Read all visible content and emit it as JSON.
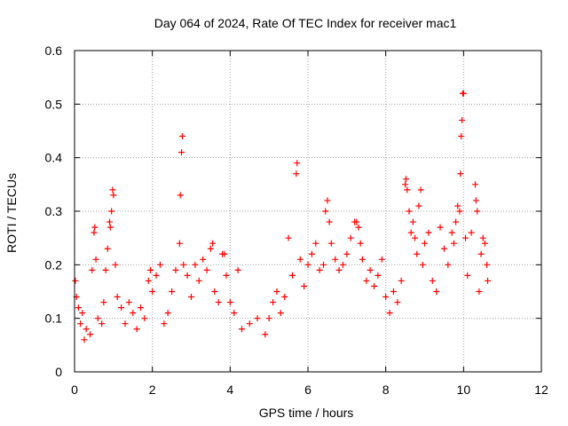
{
  "chart_data": {
    "type": "scatter",
    "title": "Day 064 of 2024, Rate Of TEC Index for receiver mac1",
    "xlabel": "GPS time / hours",
    "ylabel": "ROTI / TECUs",
    "xlim": [
      0,
      12
    ],
    "ylim": [
      0,
      0.6
    ],
    "x_ticks": [
      0,
      2,
      4,
      6,
      8,
      10,
      12
    ],
    "y_ticks": [
      0,
      0.1,
      0.2,
      0.3,
      0.4,
      0.5,
      0.6
    ],
    "x_tick_labels": [
      "0",
      "2",
      "4",
      "6",
      "8",
      "10",
      "12"
    ],
    "y_tick_labels": [
      "0",
      "0.1",
      "0.2",
      "0.3",
      "0.4",
      "0.5",
      "0.6"
    ],
    "grid": true,
    "marker": "plus",
    "marker_color": "#ff0000",
    "series": [
      {
        "name": "ROTI",
        "points": [
          [
            0.02,
            0.17
          ],
          [
            0.05,
            0.14
          ],
          [
            0.1,
            0.12
          ],
          [
            0.15,
            0.09
          ],
          [
            0.2,
            0.11
          ],
          [
            0.25,
            0.06
          ],
          [
            0.3,
            0.08
          ],
          [
            0.4,
            0.07
          ],
          [
            0.45,
            0.19
          ],
          [
            0.5,
            0.26
          ],
          [
            0.52,
            0.27
          ],
          [
            0.55,
            0.21
          ],
          [
            0.6,
            0.1
          ],
          [
            0.7,
            0.09
          ],
          [
            0.75,
            0.13
          ],
          [
            0.8,
            0.19
          ],
          [
            0.85,
            0.23
          ],
          [
            0.9,
            0.28
          ],
          [
            0.92,
            0.27
          ],
          [
            0.95,
            0.3
          ],
          [
            0.98,
            0.34
          ],
          [
            1.0,
            0.33
          ],
          [
            1.05,
            0.2
          ],
          [
            1.1,
            0.14
          ],
          [
            1.2,
            0.12
          ],
          [
            1.3,
            0.09
          ],
          [
            1.4,
            0.13
          ],
          [
            1.5,
            0.11
          ],
          [
            1.6,
            0.08
          ],
          [
            1.7,
            0.12
          ],
          [
            1.8,
            0.1
          ],
          [
            1.9,
            0.17
          ],
          [
            1.95,
            0.19
          ],
          [
            2.0,
            0.15
          ],
          [
            2.1,
            0.18
          ],
          [
            2.2,
            0.2
          ],
          [
            2.3,
            0.09
          ],
          [
            2.4,
            0.11
          ],
          [
            2.5,
            0.15
          ],
          [
            2.6,
            0.19
          ],
          [
            2.7,
            0.24
          ],
          [
            2.72,
            0.33
          ],
          [
            2.75,
            0.41
          ],
          [
            2.77,
            0.44
          ],
          [
            2.8,
            0.2
          ],
          [
            2.9,
            0.18
          ],
          [
            3.0,
            0.14
          ],
          [
            3.1,
            0.2
          ],
          [
            3.2,
            0.17
          ],
          [
            3.3,
            0.21
          ],
          [
            3.4,
            0.19
          ],
          [
            3.5,
            0.23
          ],
          [
            3.55,
            0.24
          ],
          [
            3.6,
            0.15
          ],
          [
            3.7,
            0.13
          ],
          [
            3.8,
            0.22
          ],
          [
            3.85,
            0.22
          ],
          [
            3.9,
            0.18
          ],
          [
            4.0,
            0.13
          ],
          [
            4.1,
            0.11
          ],
          [
            4.2,
            0.19
          ],
          [
            4.3,
            0.08
          ],
          [
            4.5,
            0.09
          ],
          [
            4.7,
            0.1
          ],
          [
            4.9,
            0.07
          ],
          [
            5.0,
            0.1
          ],
          [
            5.1,
            0.13
          ],
          [
            5.2,
            0.15
          ],
          [
            5.3,
            0.11
          ],
          [
            5.4,
            0.14
          ],
          [
            5.5,
            0.25
          ],
          [
            5.6,
            0.18
          ],
          [
            5.7,
            0.37
          ],
          [
            5.72,
            0.39
          ],
          [
            5.8,
            0.21
          ],
          [
            5.9,
            0.16
          ],
          [
            6.0,
            0.2
          ],
          [
            6.1,
            0.22
          ],
          [
            6.2,
            0.24
          ],
          [
            6.3,
            0.19
          ],
          [
            6.4,
            0.2
          ],
          [
            6.45,
            0.3
          ],
          [
            6.5,
            0.32
          ],
          [
            6.55,
            0.28
          ],
          [
            6.6,
            0.24
          ],
          [
            6.7,
            0.21
          ],
          [
            6.8,
            0.19
          ],
          [
            6.9,
            0.2
          ],
          [
            7.0,
            0.22
          ],
          [
            7.1,
            0.25
          ],
          [
            7.2,
            0.28
          ],
          [
            7.25,
            0.28
          ],
          [
            7.3,
            0.27
          ],
          [
            7.35,
            0.24
          ],
          [
            7.4,
            0.21
          ],
          [
            7.5,
            0.17
          ],
          [
            7.6,
            0.19
          ],
          [
            7.7,
            0.16
          ],
          [
            7.8,
            0.18
          ],
          [
            7.9,
            0.21
          ],
          [
            8.0,
            0.14
          ],
          [
            8.1,
            0.11
          ],
          [
            8.2,
            0.15
          ],
          [
            8.3,
            0.13
          ],
          [
            8.4,
            0.17
          ],
          [
            8.5,
            0.35
          ],
          [
            8.52,
            0.36
          ],
          [
            8.55,
            0.34
          ],
          [
            8.6,
            0.3
          ],
          [
            8.65,
            0.26
          ],
          [
            8.7,
            0.28
          ],
          [
            8.75,
            0.25
          ],
          [
            8.8,
            0.22
          ],
          [
            8.85,
            0.31
          ],
          [
            8.9,
            0.34
          ],
          [
            8.95,
            0.2
          ],
          [
            9.0,
            0.24
          ],
          [
            9.1,
            0.26
          ],
          [
            9.2,
            0.17
          ],
          [
            9.3,
            0.15
          ],
          [
            9.4,
            0.27
          ],
          [
            9.5,
            0.23
          ],
          [
            9.6,
            0.2
          ],
          [
            9.7,
            0.26
          ],
          [
            9.75,
            0.24
          ],
          [
            9.8,
            0.28
          ],
          [
            9.85,
            0.31
          ],
          [
            9.9,
            0.3
          ],
          [
            9.92,
            0.37
          ],
          [
            9.94,
            0.44
          ],
          [
            9.96,
            0.47
          ],
          [
            9.98,
            0.52
          ],
          [
            10.0,
            0.52
          ],
          [
            10.05,
            0.25
          ],
          [
            10.1,
            0.18
          ],
          [
            10.2,
            0.26
          ],
          [
            10.3,
            0.35
          ],
          [
            10.32,
            0.32
          ],
          [
            10.35,
            0.3
          ],
          [
            10.4,
            0.15
          ],
          [
            10.45,
            0.22
          ],
          [
            10.5,
            0.25
          ],
          [
            10.55,
            0.24
          ],
          [
            10.6,
            0.2
          ],
          [
            10.62,
            0.17
          ]
        ]
      }
    ]
  }
}
